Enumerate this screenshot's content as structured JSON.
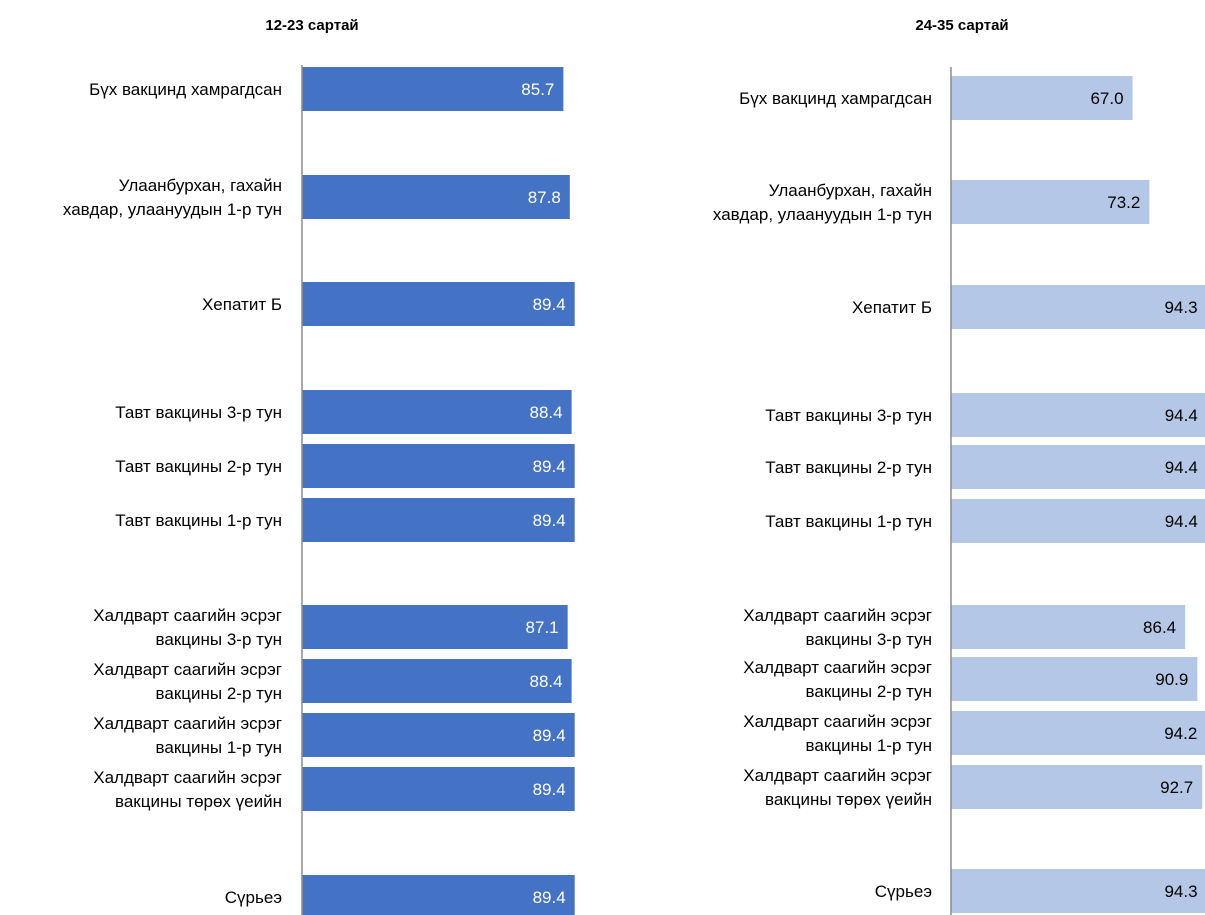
{
  "chart_data": [
    {
      "type": "bar",
      "orientation": "horizontal",
      "title": "12-23 сартай",
      "color": "#4472C4",
      "value_label_color": "#ffffff",
      "grid": false,
      "categories": [
        [
          "Бүх вакцинд хамрагдсан"
        ],
        [
          "Улаанбурхан, гахайн",
          "хавдар, улаануудын 1-р тун"
        ],
        [
          "Хепатит Б"
        ],
        [
          "Тавт вакцины 3-р тун"
        ],
        [
          "Тавт вакцины 2-р тун"
        ],
        [
          "Тавт вакцины 1-р тун"
        ],
        [
          "Халдварт саагийн эсрэг",
          "вакцины 3-р тун"
        ],
        [
          "Халдварт саагийн эсрэг",
          "вакцины 2-р тун"
        ],
        [
          "Халдварт саагийн эсрэг",
          "вакцины 1-р тун"
        ],
        [
          "Халдварт саагийн эсрэг",
          "вакцины төрөх үеийн"
        ],
        [
          "Сүрьеэ"
        ]
      ],
      "values": [
        85.7,
        87.8,
        89.4,
        88.4,
        89.4,
        89.4,
        87.1,
        88.4,
        89.4,
        89.4,
        89.4
      ],
      "value_labels": [
        "85.7",
        "87.8",
        "89.4",
        "88.4",
        "89.4",
        "89.4",
        "87.1",
        "88.4",
        "89.4",
        "89.4",
        "89.4"
      ]
    },
    {
      "type": "bar",
      "orientation": "horizontal",
      "title": "24-35 сартай",
      "color": "#B4C7E7",
      "value_label_color": "#000000",
      "grid": false,
      "categories": [
        [
          "Бүх вакцинд хамрагдсан"
        ],
        [
          "Улаанбурхан, гахайн",
          "хавдар, улаануудын 1-р тун"
        ],
        [
          "Хепатит Б"
        ],
        [
          "Тавт вакцины 3-р тун"
        ],
        [
          "Тавт вакцины 2-р тун"
        ],
        [
          "Тавт вакцины 1-р тун"
        ],
        [
          "Халдварт саагийн эсрэг",
          "вакцины 3-р тун"
        ],
        [
          "Халдварт саагийн эсрэг",
          "вакцины 2-р тун"
        ],
        [
          "Халдварт саагийн эсрэг",
          "вакцины 1-р тун"
        ],
        [
          "Халдварт саагийн эсрэг",
          "вакцины төрөх үеийн"
        ],
        [
          "Сүрьеэ"
        ]
      ],
      "values": [
        67.0,
        73.2,
        94.3,
        94.4,
        94.4,
        94.4,
        86.4,
        90.9,
        94.2,
        92.7,
        94.3
      ],
      "value_labels": [
        "67.0",
        "73.2",
        "94.3",
        "94.4",
        "94.4",
        "94.4",
        "86.4",
        "90.9",
        "94.2",
        "92.7",
        "94.3"
      ]
    }
  ]
}
